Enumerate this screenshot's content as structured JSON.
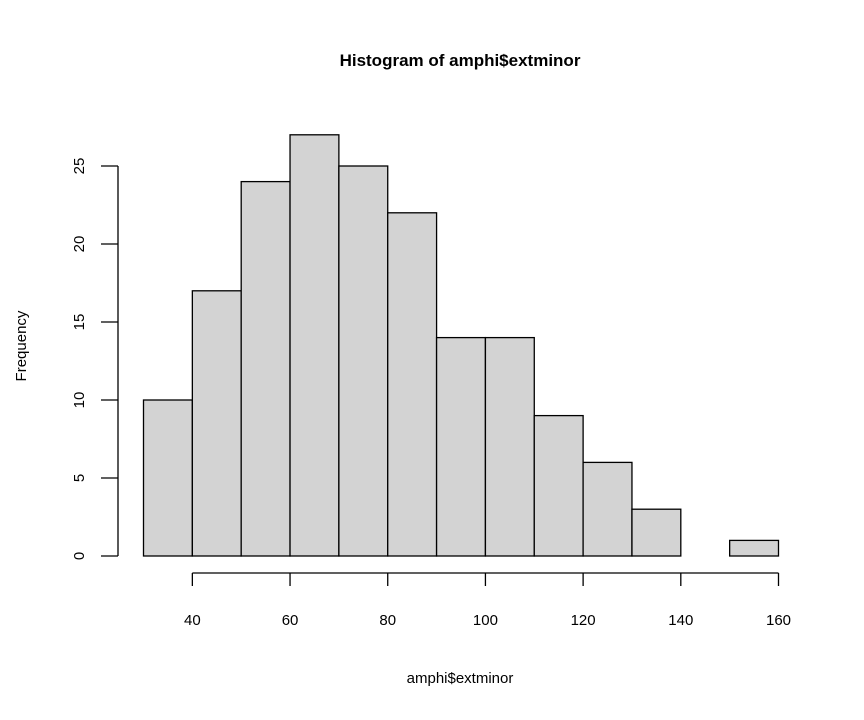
{
  "chart_data": {
    "type": "bar",
    "title": "Histogram of amphi$extminor",
    "xlabel": "amphi$extminor",
    "ylabel": "Frequency",
    "bins": [
      {
        "start": 30,
        "end": 40,
        "count": 10
      },
      {
        "start": 40,
        "end": 50,
        "count": 17
      },
      {
        "start": 50,
        "end": 60,
        "count": 24
      },
      {
        "start": 60,
        "end": 70,
        "count": 27
      },
      {
        "start": 70,
        "end": 80,
        "count": 25
      },
      {
        "start": 80,
        "end": 90,
        "count": 22
      },
      {
        "start": 90,
        "end": 100,
        "count": 14
      },
      {
        "start": 100,
        "end": 110,
        "count": 14
      },
      {
        "start": 110,
        "end": 120,
        "count": 9
      },
      {
        "start": 120,
        "end": 130,
        "count": 6
      },
      {
        "start": 130,
        "end": 140,
        "count": 3
      },
      {
        "start": 140,
        "end": 150,
        "count": 0
      },
      {
        "start": 150,
        "end": 160,
        "count": 1
      }
    ],
    "x_ticks": [
      40,
      60,
      80,
      100,
      120,
      140,
      160
    ],
    "y_ticks": [
      0,
      5,
      10,
      15,
      20,
      25
    ],
    "xlim": [
      30,
      160
    ],
    "ylim": [
      0,
      27
    ],
    "grid": false,
    "bar_fill": "#d3d3d3",
    "bar_stroke": "#000000"
  }
}
